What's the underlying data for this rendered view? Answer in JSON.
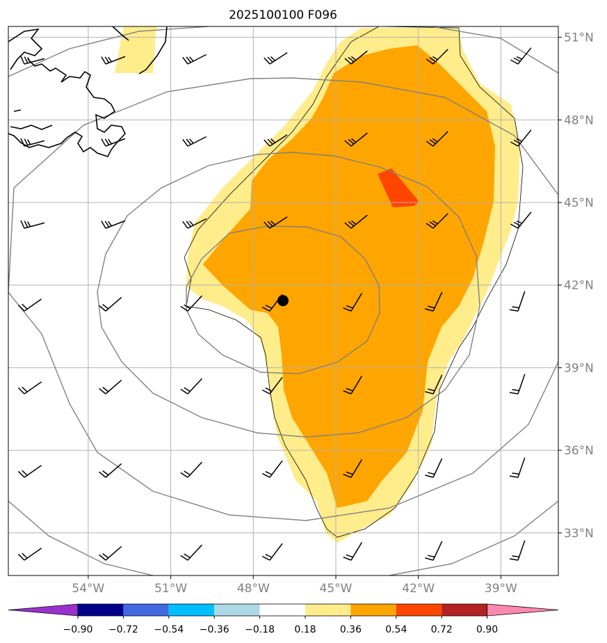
{
  "title": "2025100100 F096",
  "map": {
    "lon_ticks": [
      {
        "lon": -54,
        "label": "54°W"
      },
      {
        "lon": -51,
        "label": "51°W"
      },
      {
        "lon": -48,
        "label": "48°W"
      },
      {
        "lon": -45,
        "label": "45°W"
      },
      {
        "lon": -42,
        "label": "42°W"
      },
      {
        "lon": -39,
        "label": "39°W"
      }
    ],
    "lat_ticks": [
      {
        "lat": 51,
        "label": "51°N"
      },
      {
        "lat": 48,
        "label": "48°N"
      },
      {
        "lat": 45,
        "label": "45°N"
      },
      {
        "lat": 42,
        "label": "42°N"
      },
      {
        "lat": 39,
        "label": "39°N"
      },
      {
        "lat": 36,
        "label": "36°N"
      },
      {
        "lat": 33,
        "label": "33°N"
      }
    ],
    "center_marker": {
      "lon": -46.7,
      "lat": 41.4
    },
    "range_rings": 4,
    "shading_colors": {
      "light": "#ffec8b",
      "mid": "#ffa500",
      "high": "#ff4500"
    },
    "grid_color": "#b0b0b0",
    "ring_color": "#808080",
    "coast_color": "#000000"
  },
  "colorbar": {
    "ticks": [
      "−0.90",
      "−0.72",
      "−0.54",
      "−0.36",
      "−0.18",
      "0.18",
      "0.36",
      "0.54",
      "0.72",
      "0.90"
    ],
    "colors": [
      "#9932cc",
      "#00008b",
      "#4169e1",
      "#00bfff",
      "#add8e6",
      "#ffffff",
      "#ffec8b",
      "#ffa500",
      "#ff4500",
      "#b22222",
      "#ff88b0"
    ]
  }
}
